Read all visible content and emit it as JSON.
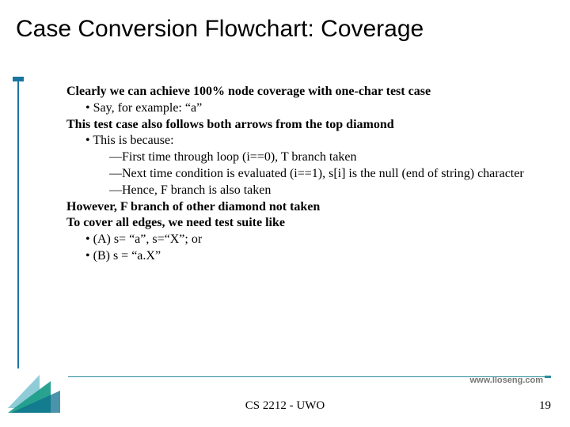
{
  "title": "Case Conversion Flowchart: Coverage",
  "body": {
    "p1": "Clearly we can achieve 100% node coverage with one-char test case",
    "b1": "Say, for example: “a”",
    "p2": "This test case also follows both arrows from the top diamond",
    "b2": "This is because:",
    "d1": "First time through loop (i==0), T branch taken",
    "d2": "Next time condition is evaluated (i==1), s[i] is the null (end of string) character",
    "d3": "Hence, F branch is also taken",
    "p3": "However, F branch of other diamond not taken",
    "p4": "To cover all edges, we need test suite like",
    "b3": "(A) s= “a”, s=“X”; or",
    "b4": "(B) s = “a.X”"
  },
  "footer": {
    "url": "www.lloseng.com",
    "center": "CS 2212 - UWO",
    "page": "19"
  },
  "style": {
    "title_fontsize": 30,
    "body_fontsize": 16,
    "accent_teal": "#1e9e8a",
    "accent_blue": "#1976a0",
    "line_color": "#2a8c9c",
    "background": "#ffffff"
  }
}
